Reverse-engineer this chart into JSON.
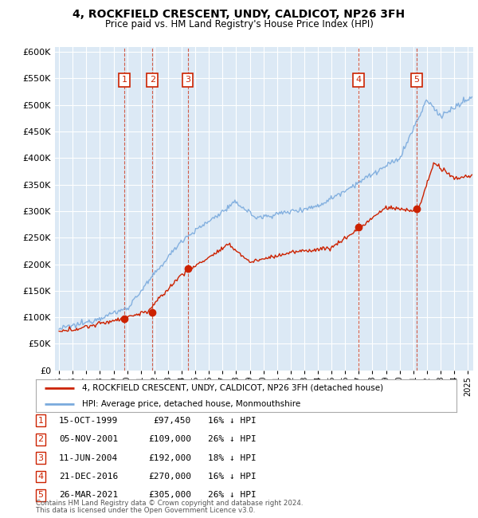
{
  "title": "4, ROCKFIELD CRESCENT, UNDY, CALDICOT, NP26 3FH",
  "subtitle": "Price paid vs. HM Land Registry's House Price Index (HPI)",
  "hpi_label": "HPI: Average price, detached house, Monmouthshire",
  "property_label": "4, ROCKFIELD CRESCENT, UNDY, CALDICOT, NP26 3FH (detached house)",
  "footer_line1": "Contains HM Land Registry data © Crown copyright and database right 2024.",
  "footer_line2": "This data is licensed under the Open Government Licence v3.0.",
  "ylim": [
    0,
    610000
  ],
  "yticks": [
    0,
    50000,
    100000,
    150000,
    200000,
    250000,
    300000,
    350000,
    400000,
    450000,
    500000,
    550000,
    600000
  ],
  "background_color": "#dce9f5",
  "grid_color": "#ffffff",
  "hpi_color": "#7aaadd",
  "property_color": "#cc2200",
  "sale_dates_x": [
    1999.79,
    2001.85,
    2004.44,
    2016.97,
    2021.23
  ],
  "sale_prices_y": [
    97450,
    109000,
    192000,
    270000,
    305000
  ],
  "sale_labels": [
    "1",
    "2",
    "3",
    "4",
    "5"
  ],
  "sale_dates_str": [
    "15-OCT-1999",
    "05-NOV-2001",
    "11-JUN-2004",
    "21-DEC-2016",
    "26-MAR-2021"
  ],
  "sale_prices_str": [
    "£97,450",
    "£109,000",
    "£192,000",
    "£270,000",
    "£305,000"
  ],
  "sale_hpi_pct": [
    "16% ↓ HPI",
    "26% ↓ HPI",
    "18% ↓ HPI",
    "16% ↓ HPI",
    "26% ↓ HPI"
  ],
  "xmin": 1994.7,
  "xmax": 2025.4
}
